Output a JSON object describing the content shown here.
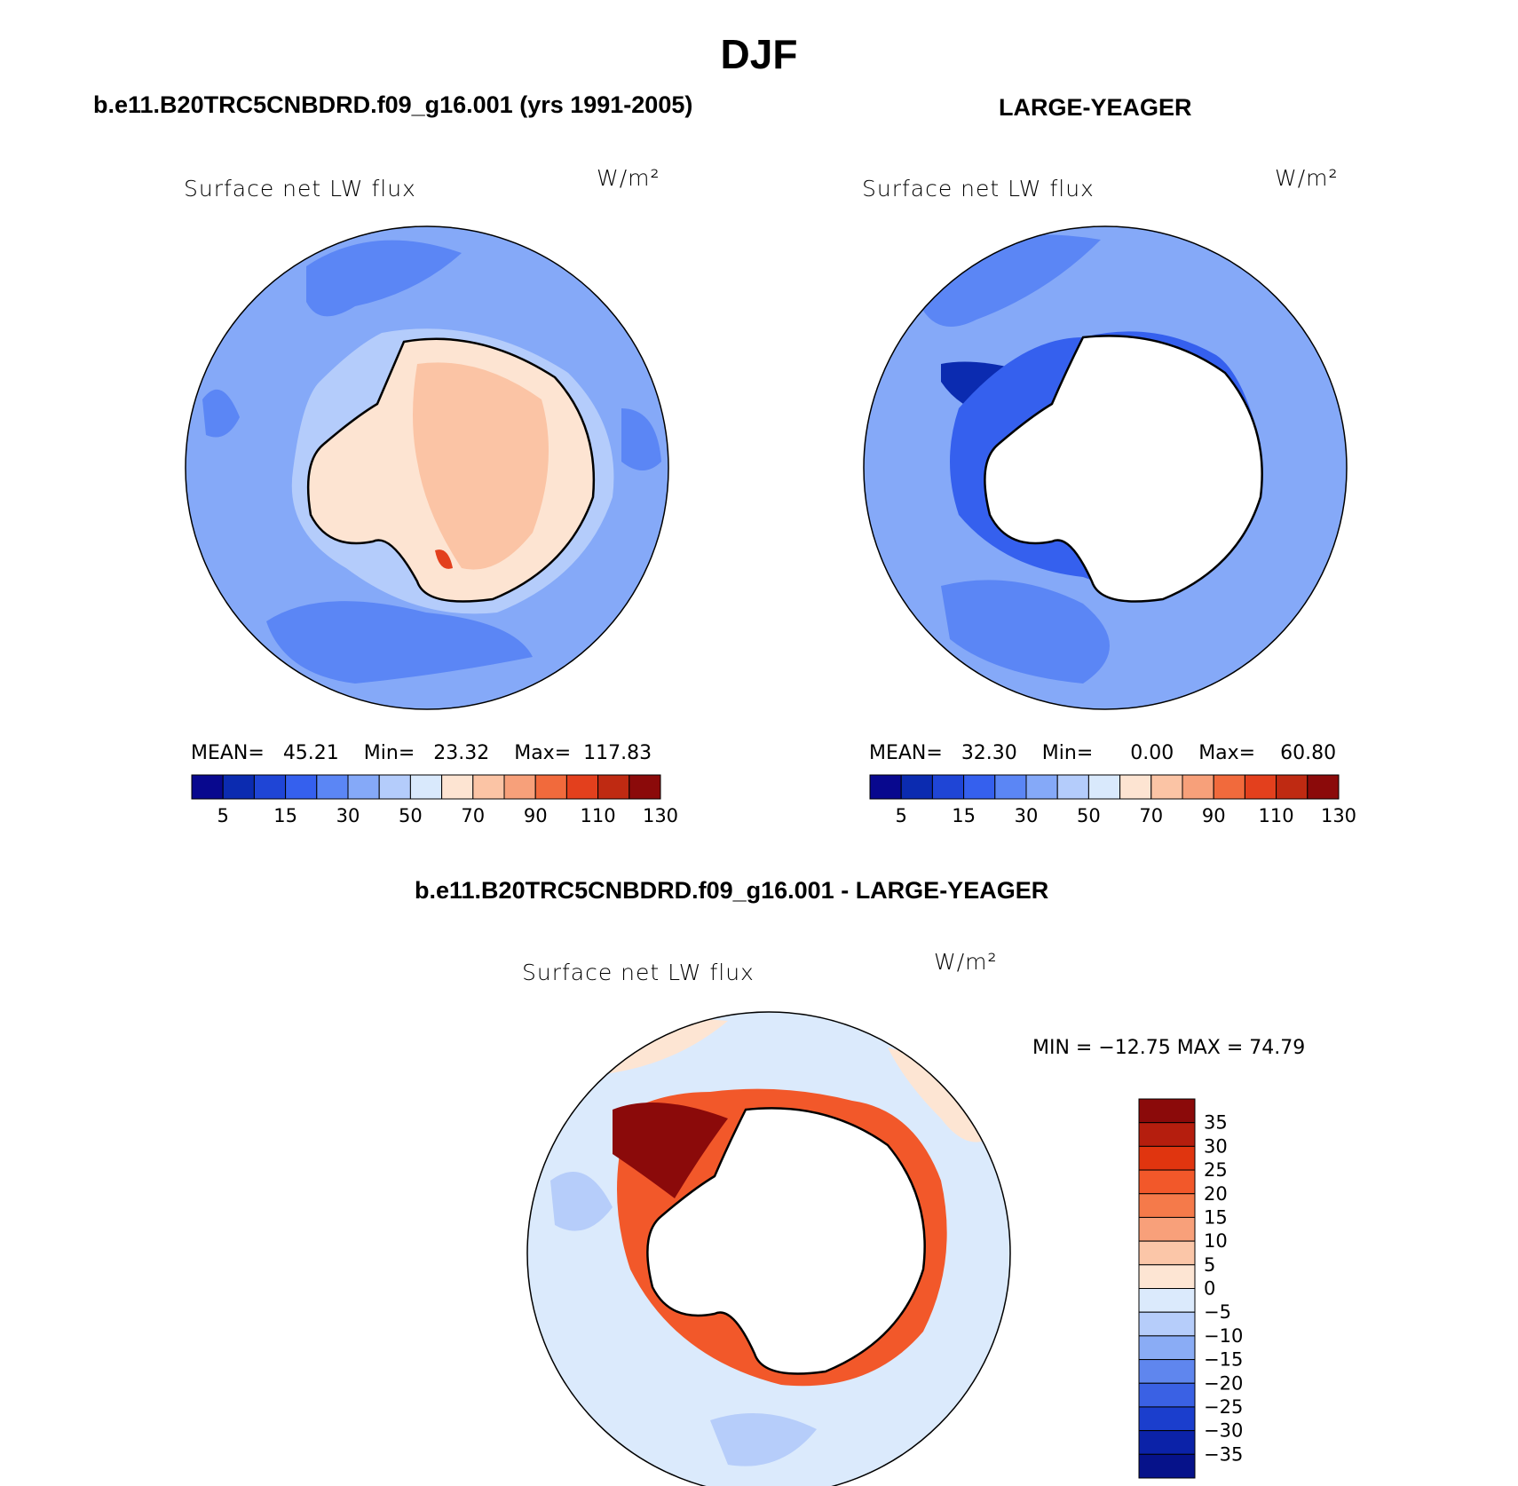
{
  "figure": {
    "title": "DJF",
    "top_left": {
      "subtitle": "b.e11.B20TRC5CNBDRD.f09_g16.001 (yrs 1991-2005)",
      "plot_label": "Surface net LW flux",
      "units": "W/m²",
      "stats": {
        "mean_label": "MEAN=",
        "mean": "45.21",
        "min_label": "Min=",
        "min": "23.32",
        "max_label": "Max=",
        "max": "117.83"
      }
    },
    "top_right": {
      "subtitle": "LARGE-YEAGER",
      "plot_label": "Surface net LW flux",
      "units": "W/m²",
      "stats": {
        "mean_label": "MEAN=",
        "mean": "32.30",
        "min_label": "Min=",
        "min": "0.00",
        "max_label": "Max=",
        "max": "60.80"
      }
    },
    "bottom": {
      "subtitle": "b.e11.B20TRC5CNBDRD.f09_g16.001 - LARGE-YEAGER",
      "plot_label": "Surface net LW flux",
      "units": "W/m²",
      "minmax_text": "MIN = −12.75  MAX =   74.79"
    }
  },
  "colors": {
    "abs_scale": [
      "#08088e",
      "#0b2bb0",
      "#1f45d6",
      "#3560ee",
      "#5b86f5",
      "#85a9f8",
      "#b4ccfb",
      "#d9e9fc",
      "#fde4d2",
      "#fbc4a5",
      "#f7a07a",
      "#f16a3c",
      "#e3401d",
      "#bf2a12",
      "#8b0a0a"
    ],
    "diff_scale": [
      "#8b0a0a",
      "#b51e0e",
      "#e0350f",
      "#f2582a",
      "#f57a4a",
      "#f8a07a",
      "#fbc6a8",
      "#fde5d3",
      "#dbeafc",
      "#b6cdfa",
      "#8aacf5",
      "#5f86ee",
      "#3a61e4",
      "#1b3ecd",
      "#0b22a8",
      "#06128a"
    ],
    "land": "#ffffff",
    "coast": "#000000"
  },
  "chart_data": [
    {
      "type": "heatmap",
      "title": "Surface net LW flux",
      "units": "W/m²",
      "colorbar_ticks": [
        "5",
        "15",
        "30",
        "50",
        "70",
        "90",
        "110",
        "130"
      ],
      "levels": [
        5,
        10,
        15,
        20,
        30,
        40,
        50,
        60,
        70,
        80,
        90,
        100,
        110,
        120,
        130
      ],
      "mean": 45.21,
      "min": 23.32,
      "max": 117.83
    },
    {
      "type": "heatmap",
      "title": "Surface net LW flux",
      "units": "W/m²",
      "colorbar_ticks": [
        "5",
        "15",
        "30",
        "50",
        "70",
        "90",
        "110",
        "130"
      ],
      "levels": [
        5,
        10,
        15,
        20,
        30,
        40,
        50,
        60,
        70,
        80,
        90,
        100,
        110,
        120,
        130
      ],
      "mean": 32.3,
      "min": 0.0,
      "max": 60.8
    },
    {
      "type": "heatmap",
      "title": "Surface net LW flux",
      "units": "W/m²",
      "colorbar_ticks": [
        "35",
        "30",
        "25",
        "20",
        "15",
        "10",
        "5",
        "0",
        "−5",
        "−10",
        "−15",
        "−20",
        "−25",
        "−30",
        "−35"
      ],
      "levels": [
        35,
        30,
        25,
        20,
        15,
        10,
        5,
        0,
        -5,
        -10,
        -15,
        -20,
        -25,
        -30,
        -35
      ],
      "min": -12.75,
      "max": 74.79
    }
  ]
}
